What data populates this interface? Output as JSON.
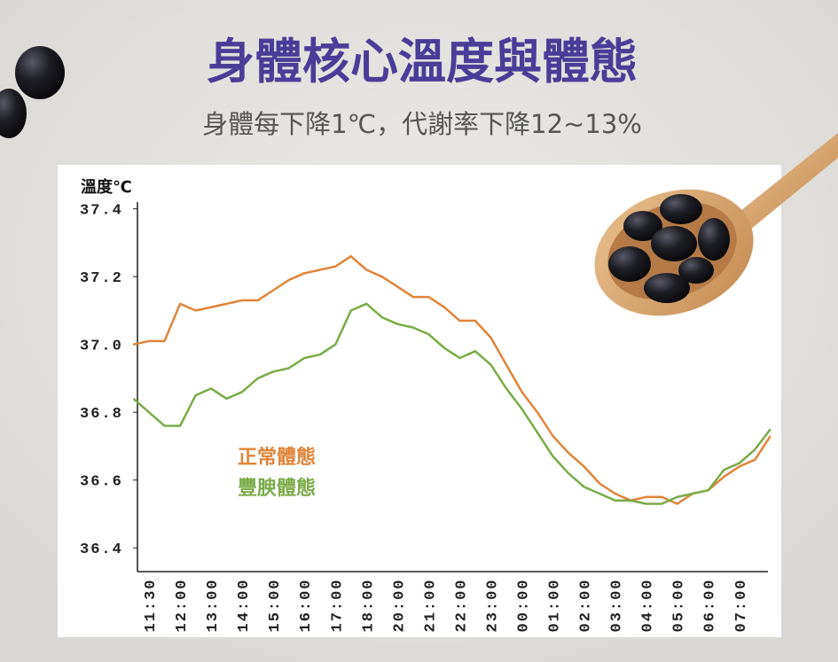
{
  "chart_data": {
    "type": "line",
    "title": "身體核心溫度與體態",
    "subtitle": "身體每下降1℃，代謝率下降12~13%",
    "y_label": "溫度℃",
    "categories": [
      null,
      "11:30",
      null,
      "12:00",
      null,
      "13:00",
      null,
      "14:00",
      null,
      "15:00",
      null,
      "16:00",
      null,
      "17:00",
      null,
      "18:00",
      null,
      "20:00",
      null,
      "21:00",
      null,
      "22:00",
      null,
      "23:00",
      null,
      "00:00",
      null,
      "01:00",
      null,
      "02:00",
      null,
      "03:00",
      null,
      "04:00",
      null,
      "05:00",
      null,
      "06:00",
      null,
      "07:00",
      null,
      null
    ],
    "series": [
      {
        "name": "正常體態",
        "color": "#e0843a",
        "values": [
          37.0,
          37.01,
          37.01,
          37.12,
          37.1,
          37.11,
          37.12,
          37.13,
          37.13,
          37.16,
          37.19,
          37.21,
          37.22,
          37.23,
          37.26,
          37.22,
          37.2,
          37.17,
          37.14,
          37.14,
          37.11,
          37.07,
          37.07,
          37.02,
          36.94,
          36.86,
          36.8,
          36.73,
          36.68,
          36.64,
          36.59,
          36.56,
          36.54,
          36.55,
          36.55,
          36.53,
          36.56,
          36.57,
          36.61,
          36.64,
          36.66,
          36.73
        ]
      },
      {
        "name": "豐腴體態",
        "color": "#7aab48",
        "values": [
          36.84,
          36.8,
          36.76,
          36.76,
          36.85,
          36.87,
          36.84,
          36.86,
          36.9,
          36.92,
          36.93,
          36.96,
          36.97,
          37.0,
          37.1,
          37.12,
          37.08,
          37.06,
          37.05,
          37.03,
          36.99,
          36.96,
          36.98,
          36.94,
          36.87,
          36.81,
          36.74,
          36.67,
          36.62,
          36.58,
          36.56,
          36.54,
          36.54,
          36.53,
          36.53,
          36.55,
          36.56,
          36.57,
          36.63,
          36.65,
          36.69,
          36.75
        ]
      }
    ],
    "ylim": [
      36.33,
      37.42
    ],
    "yticks": [
      {
        "value": 37.4,
        "label": "37.4"
      },
      {
        "value": 37.2,
        "label": "37.2"
      },
      {
        "value": 37.0,
        "label": "37.0"
      },
      {
        "value": 36.8,
        "label": "36.8"
      },
      {
        "value": 36.6,
        "label": "36.6"
      },
      {
        "value": 36.4,
        "label": "36.4"
      }
    ],
    "grid": false
  }
}
